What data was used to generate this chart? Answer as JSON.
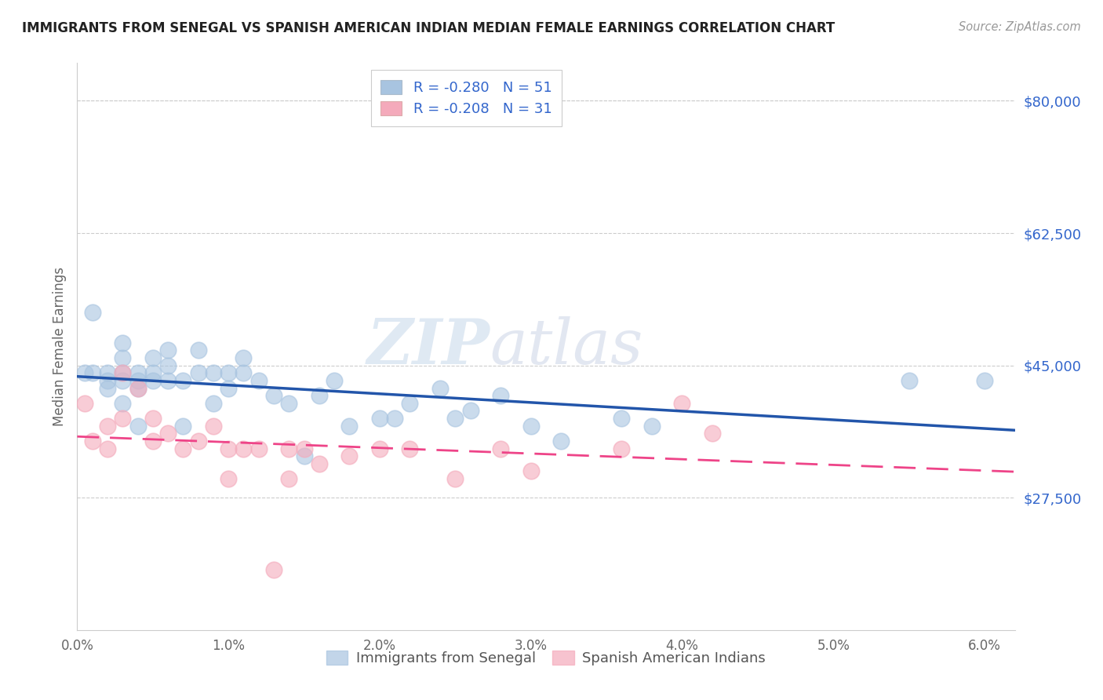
{
  "title": "IMMIGRANTS FROM SENEGAL VS SPANISH AMERICAN INDIAN MEDIAN FEMALE EARNINGS CORRELATION CHART",
  "source": "Source: ZipAtlas.com",
  "ylabel": "Median Female Earnings",
  "ylim": [
    10000,
    85000
  ],
  "xlim": [
    0.0,
    0.062
  ],
  "legend_label_blue": "Immigrants from Senegal",
  "legend_label_pink": "Spanish American Indians",
  "blue_color": "#A8C4E0",
  "pink_color": "#F4AABB",
  "blue_line_color": "#2255AA",
  "pink_line_color": "#EE4488",
  "legend_text_color": "#3366CC",
  "background_color": "#FFFFFF",
  "watermark_zip": "ZIP",
  "watermark_atlas": "atlas",
  "grid_color": "#CCCCCC",
  "blue_scatter_x": [
    0.0005,
    0.001,
    0.001,
    0.002,
    0.002,
    0.002,
    0.003,
    0.003,
    0.003,
    0.003,
    0.003,
    0.004,
    0.004,
    0.004,
    0.004,
    0.005,
    0.005,
    0.005,
    0.006,
    0.006,
    0.006,
    0.007,
    0.007,
    0.008,
    0.008,
    0.009,
    0.009,
    0.01,
    0.01,
    0.011,
    0.011,
    0.012,
    0.013,
    0.014,
    0.015,
    0.016,
    0.017,
    0.018,
    0.02,
    0.021,
    0.022,
    0.024,
    0.025,
    0.026,
    0.028,
    0.03,
    0.032,
    0.036,
    0.038,
    0.055,
    0.06
  ],
  "blue_scatter_y": [
    44000,
    52000,
    44000,
    44000,
    43000,
    42000,
    48000,
    46000,
    44000,
    43000,
    40000,
    44000,
    43000,
    42000,
    37000,
    46000,
    44000,
    43000,
    47000,
    45000,
    43000,
    43000,
    37000,
    47000,
    44000,
    44000,
    40000,
    44000,
    42000,
    46000,
    44000,
    43000,
    41000,
    40000,
    33000,
    41000,
    43000,
    37000,
    38000,
    38000,
    40000,
    42000,
    38000,
    39000,
    41000,
    37000,
    35000,
    38000,
    37000,
    43000,
    43000
  ],
  "pink_scatter_x": [
    0.0005,
    0.001,
    0.002,
    0.002,
    0.003,
    0.003,
    0.004,
    0.005,
    0.005,
    0.006,
    0.007,
    0.008,
    0.009,
    0.01,
    0.01,
    0.011,
    0.012,
    0.013,
    0.014,
    0.014,
    0.015,
    0.016,
    0.018,
    0.02,
    0.022,
    0.025,
    0.028,
    0.03,
    0.036,
    0.04,
    0.042
  ],
  "pink_scatter_y": [
    40000,
    35000,
    37000,
    34000,
    44000,
    38000,
    42000,
    38000,
    35000,
    36000,
    34000,
    35000,
    37000,
    34000,
    30000,
    34000,
    34000,
    18000,
    34000,
    30000,
    34000,
    32000,
    33000,
    34000,
    34000,
    30000,
    34000,
    31000,
    34000,
    40000,
    36000
  ]
}
